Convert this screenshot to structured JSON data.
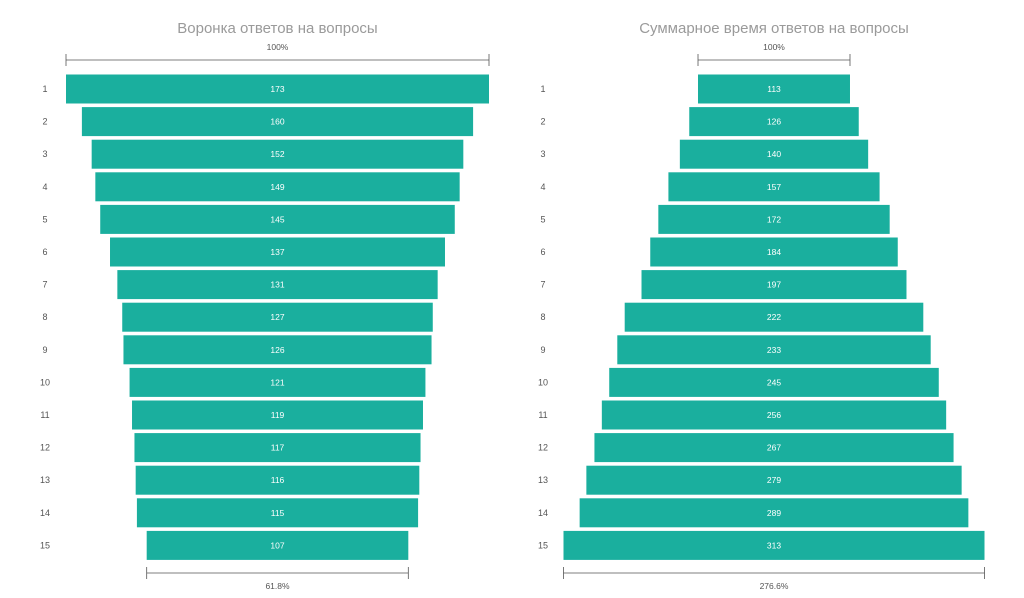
{
  "colors": {
    "bar": "#1aaf9e",
    "bracket": "#555555",
    "title": "#9a9a9a"
  },
  "chart_data": [
    {
      "type": "bar",
      "orientation": "horizontal-centered",
      "title": "Воронка ответов на вопросы",
      "categories": [
        "1",
        "2",
        "3",
        "4",
        "5",
        "6",
        "7",
        "8",
        "9",
        "10",
        "11",
        "12",
        "13",
        "14",
        "15"
      ],
      "values": [
        173,
        160,
        152,
        149,
        145,
        137,
        131,
        127,
        126,
        121,
        119,
        117,
        116,
        115,
        107
      ],
      "top_label": "100%",
      "bottom_label": "61.8%"
    },
    {
      "type": "bar",
      "orientation": "horizontal-centered",
      "title": "Суммарное время ответов на вопросы",
      "categories": [
        "1",
        "2",
        "3",
        "4",
        "5",
        "6",
        "7",
        "8",
        "9",
        "10",
        "11",
        "12",
        "13",
        "14",
        "15"
      ],
      "values": [
        113,
        126,
        140,
        157,
        172,
        184,
        197,
        222,
        233,
        245,
        256,
        267,
        279,
        289,
        313
      ],
      "top_label": "100%",
      "bottom_label": "276.6%"
    }
  ]
}
